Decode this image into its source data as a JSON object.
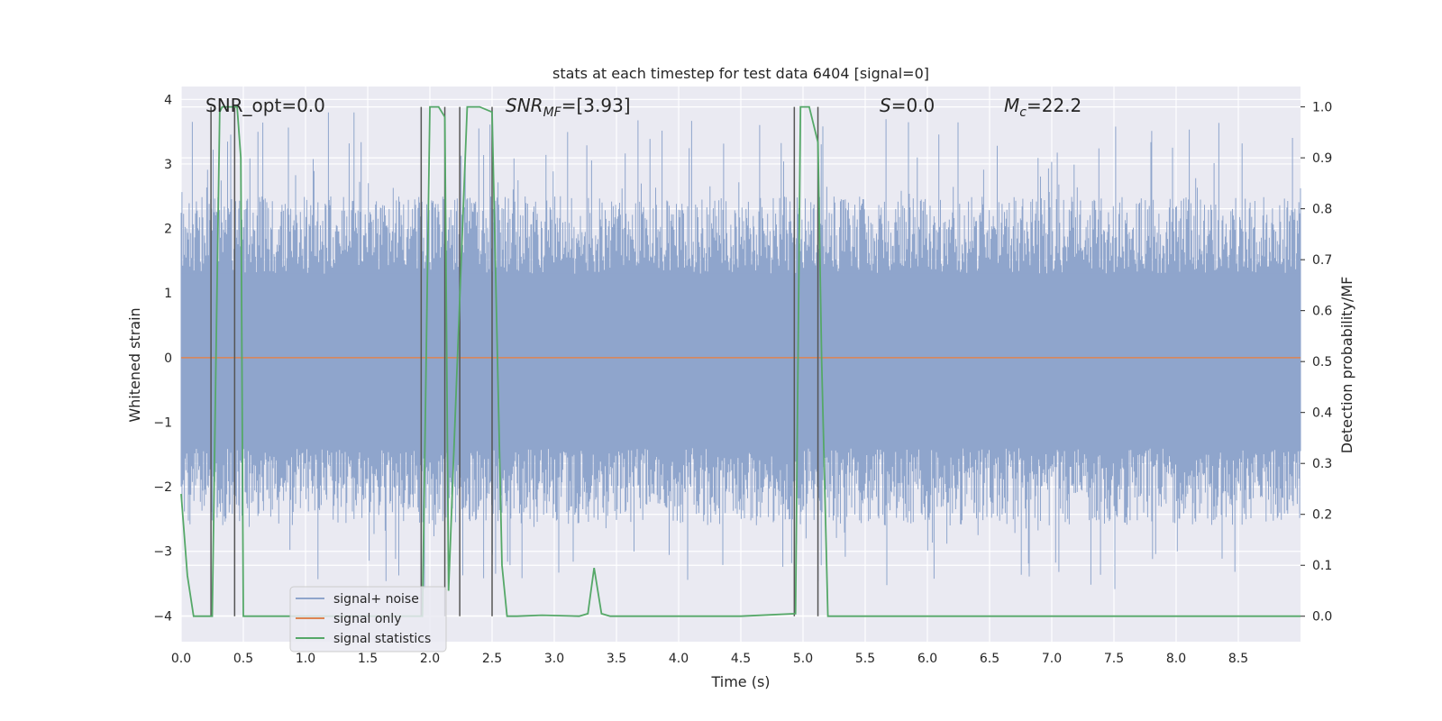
{
  "chart_data": {
    "type": "line",
    "title": "stats at each timestep for test data 6404 [signal=0]",
    "xlabel": "Time (s)",
    "ylabel": "Whitened strain",
    "y2label": "Detection probability/MF",
    "xlim": [
      0.0,
      9.0
    ],
    "ylim": [
      -4.4,
      4.2
    ],
    "y2lim": [
      -0.05,
      1.04
    ],
    "xticks": [
      "0.0",
      "0.5",
      "1.0",
      "1.5",
      "2.0",
      "2.5",
      "3.0",
      "3.5",
      "4.0",
      "4.5",
      "5.0",
      "5.5",
      "6.0",
      "6.5",
      "7.0",
      "7.5",
      "8.0",
      "8.5"
    ],
    "xtick_values": [
      0.0,
      0.5,
      1.0,
      1.5,
      2.0,
      2.5,
      3.0,
      3.5,
      4.0,
      4.5,
      5.0,
      5.5,
      6.0,
      6.5,
      7.0,
      7.5,
      8.0,
      8.5
    ],
    "yticks": [
      "4",
      "3",
      "2",
      "1",
      "0",
      "−1",
      "−2",
      "−3",
      "−4"
    ],
    "ytick_values": [
      4,
      3,
      2,
      1,
      0,
      -1,
      -2,
      -3,
      -4
    ],
    "y2ticks": [
      "1.0",
      "0.9",
      "0.8",
      "0.7",
      "0.6",
      "0.5",
      "0.4",
      "0.3",
      "0.2",
      "0.1",
      "0.0"
    ],
    "y2tick_values": [
      1.0,
      0.9,
      0.8,
      0.7,
      0.6,
      0.5,
      0.4,
      0.3,
      0.2,
      0.1,
      0.0
    ],
    "annotations": {
      "snr_opt": "SNR_opt=0.0",
      "snr_mf_main": "SNR",
      "snr_mf_sub": "MF",
      "snr_mf_value": "=[3.93]",
      "s_main": "S",
      "s_value": "=0.0",
      "mc_main": "M",
      "mc_sub": "c",
      "mc_value": "=22.2"
    },
    "legend": {
      "placement": "lower-left",
      "entries": [
        "signal+ noise",
        "signal only",
        "signal statistics"
      ]
    },
    "colors": {
      "noise": "#8fa5cc",
      "signal": "#dd8452",
      "stats": "#55a868",
      "vline": "#555555",
      "grid": "#ffffff",
      "bg": "#eaeaf2"
    },
    "series": [
      {
        "name": "signal+ noise",
        "kind": "noise-band",
        "x_range": [
          0.0,
          9.0
        ],
        "envelope_upper": 2.5,
        "envelope_lower": -2.6,
        "peak_max": 3.8,
        "peak_min": -3.6
      },
      {
        "name": "signal only",
        "x": [
          0.0,
          9.0
        ],
        "y": [
          0.0,
          0.0
        ]
      },
      {
        "name": "signal statistics",
        "axis": "right",
        "x": [
          0.0,
          0.05,
          0.1,
          0.25,
          0.28,
          0.31,
          0.33,
          0.38,
          0.42,
          0.45,
          0.48,
          0.5,
          1.0,
          1.5,
          1.9,
          1.94,
          2.0,
          2.07,
          2.12,
          2.15,
          2.22,
          2.3,
          2.4,
          2.5,
          2.58,
          2.62,
          2.7,
          2.9,
          3.2,
          3.27,
          3.32,
          3.38,
          3.45,
          4.0,
          4.5,
          4.94,
          4.98,
          5.05,
          5.12,
          5.15,
          5.2,
          5.3,
          9.0
        ],
        "y": [
          0.24,
          0.08,
          0.0,
          0.0,
          0.5,
          0.99,
          1.0,
          1.0,
          1.0,
          1.0,
          0.9,
          0.0,
          0.0,
          0.0,
          0.0,
          0.0,
          1.0,
          1.0,
          0.98,
          0.05,
          0.5,
          1.0,
          1.0,
          0.99,
          0.1,
          0.0,
          0.0,
          0.002,
          0.0,
          0.005,
          0.095,
          0.005,
          0.0,
          0.0,
          0.0,
          0.005,
          1.0,
          1.0,
          0.93,
          0.5,
          0.0,
          0.0,
          0.0
        ]
      }
    ],
    "vlines": [
      0.24,
      0.43,
      1.93,
      2.12,
      2.24,
      2.5,
      4.93,
      5.12
    ]
  }
}
